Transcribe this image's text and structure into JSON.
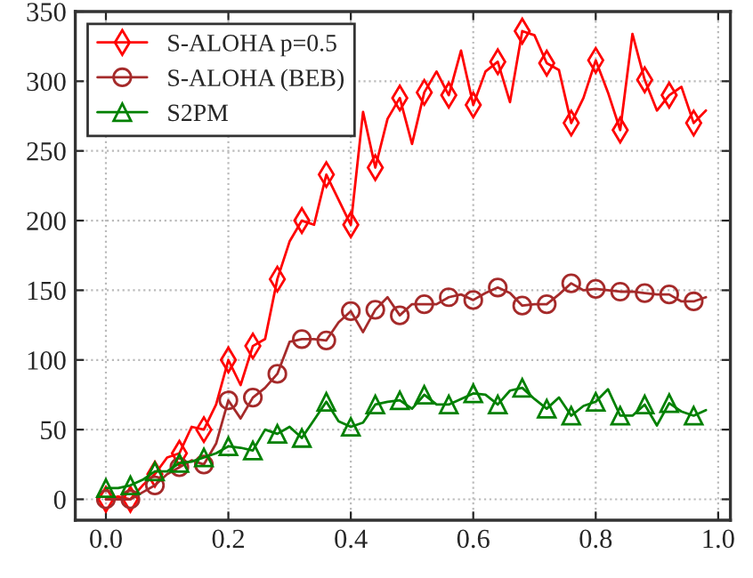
{
  "chart_data": {
    "type": "line",
    "x": [
      0.0,
      0.02,
      0.04,
      0.06,
      0.08,
      0.1,
      0.12,
      0.14,
      0.16,
      0.18,
      0.2,
      0.22,
      0.24,
      0.26,
      0.28,
      0.3,
      0.32,
      0.34,
      0.36,
      0.38,
      0.4,
      0.42,
      0.44,
      0.46,
      0.48,
      0.5,
      0.52,
      0.54,
      0.56,
      0.58,
      0.6,
      0.62,
      0.64,
      0.66,
      0.68,
      0.7,
      0.72,
      0.74,
      0.76,
      0.78,
      0.8,
      0.82,
      0.84,
      0.86,
      0.88,
      0.9,
      0.92,
      0.94,
      0.96,
      0.98
    ],
    "series": [
      {
        "name": "S-ALOHA p=0.5",
        "color": "#ff0000",
        "marker": "diamond",
        "values": [
          0,
          2,
          0,
          10,
          18,
          30,
          33,
          52,
          50,
          68,
          100,
          82,
          110,
          115,
          158,
          185,
          200,
          197,
          233,
          215,
          197,
          278,
          238,
          273,
          288,
          255,
          292,
          307,
          290,
          322,
          283,
          307,
          314,
          285,
          336,
          333,
          313,
          308,
          270,
          288,
          315,
          292,
          265,
          334,
          301,
          279,
          290,
          296,
          270,
          279
        ]
      },
      {
        "name": "S-ALOHA (BEB)",
        "color": "#a52a2a",
        "marker": "circle",
        "values": [
          0,
          0,
          0,
          5,
          10,
          18,
          23,
          28,
          25,
          40,
          71,
          58,
          73,
          80,
          90,
          113,
          115,
          115,
          114,
          127,
          135,
          120,
          136,
          145,
          132,
          140,
          140,
          140,
          145,
          147,
          143,
          148,
          152,
          148,
          139,
          140,
          140,
          147,
          155,
          150,
          151,
          150,
          149,
          149,
          148,
          147,
          147,
          142,
          142,
          145
        ]
      },
      {
        "name": "S2PM",
        "color": "#008000",
        "marker": "triangle",
        "values": [
          8,
          8,
          10,
          14,
          20,
          20,
          26,
          27,
          30,
          33,
          38,
          37,
          35,
          50,
          47,
          52,
          44,
          57,
          70,
          56,
          52,
          55,
          68,
          70,
          71,
          65,
          75,
          68,
          68,
          72,
          76,
          75,
          68,
          78,
          80,
          72,
          65,
          73,
          60,
          67,
          70,
          79,
          60,
          60,
          68,
          53,
          69,
          63,
          60,
          64
        ]
      }
    ],
    "xlim": [
      -0.05,
      1.02
    ],
    "ylim": [
      -15,
      350
    ],
    "xticks": [
      {
        "value": 0,
        "label": "0.0"
      },
      0.2,
      0.4,
      0.6,
      0.8,
      {
        "value": 1,
        "label": "1.0"
      }
    ],
    "yticks": [
      0,
      50,
      100,
      150,
      200,
      250,
      300,
      350
    ],
    "grid": true,
    "legend": "top left",
    "line_style": "solid"
  }
}
